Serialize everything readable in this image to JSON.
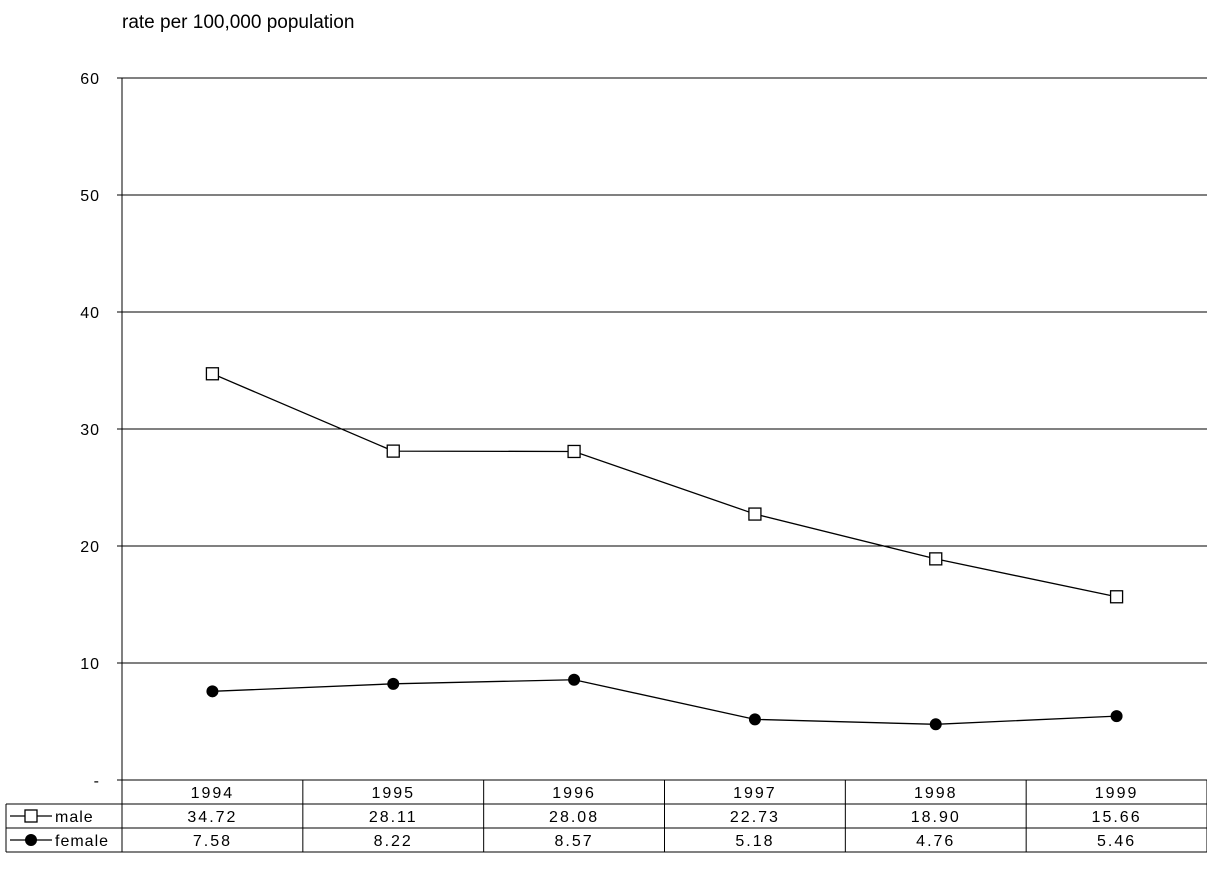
{
  "chart_data": {
    "type": "line",
    "title": "",
    "ylabel": "rate per 100,000 population",
    "xlabel": "",
    "ylim": [
      0,
      60
    ],
    "y_ticks": [
      {
        "value": 60,
        "label": "60"
      },
      {
        "value": 50,
        "label": "50"
      },
      {
        "value": 40,
        "label": "40"
      },
      {
        "value": 30,
        "label": "30"
      },
      {
        "value": 20,
        "label": "20"
      },
      {
        "value": 10,
        "label": "10"
      },
      {
        "value": 0,
        "label": "-"
      }
    ],
    "grid": true,
    "legend": "data table below chart",
    "categories": [
      "1994",
      "1995",
      "1996",
      "1997",
      "1998",
      "1999"
    ],
    "series": [
      {
        "name": "male",
        "marker": "hollow-square",
        "color": "#000000",
        "values": [
          34.72,
          28.11,
          28.08,
          22.73,
          18.9,
          15.66
        ],
        "value_labels": [
          "34.72",
          "28.11",
          "28.08",
          "22.73",
          "18.90",
          "15.66"
        ]
      },
      {
        "name": "female",
        "marker": "filled-circle",
        "color": "#000000",
        "values": [
          7.58,
          8.22,
          8.57,
          5.18,
          4.76,
          5.46
        ],
        "value_labels": [
          "7.58",
          "8.22",
          "8.57",
          "5.18",
          "4.76",
          "5.46"
        ]
      }
    ]
  }
}
